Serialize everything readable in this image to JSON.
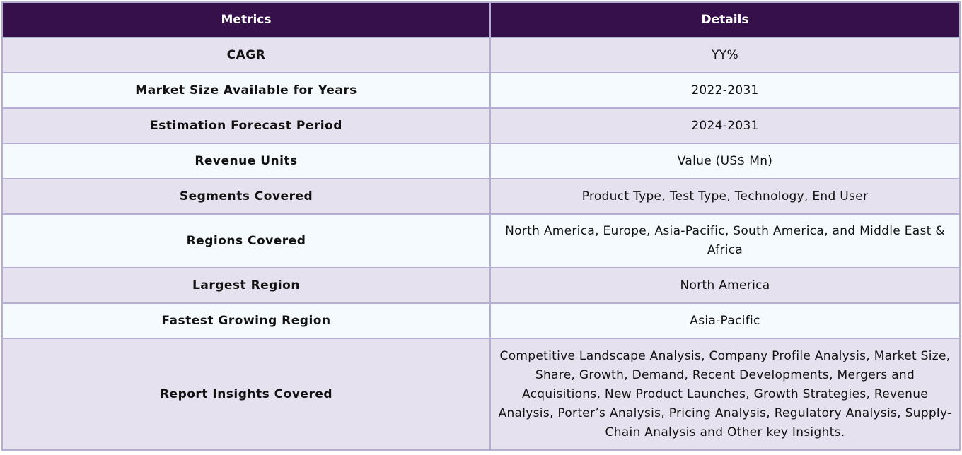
{
  "table": {
    "headers": [
      "Metrics",
      "Details"
    ],
    "rows": [
      {
        "metric": "CAGR",
        "details": "YY%"
      },
      {
        "metric": "Market Size Available for Years",
        "details": "2022-2031"
      },
      {
        "metric": "Estimation Forecast Period",
        "details": "2024-2031"
      },
      {
        "metric": "Revenue Units",
        "details": "Value (US$ Mn)"
      },
      {
        "metric": "Segments Covered",
        "details": "Product Type, Test Type, Technology, End User"
      },
      {
        "metric": "Regions Covered",
        "details": "North America, Europe, Asia-Pacific, South America, and Middle East & Africa"
      },
      {
        "metric": "Largest Region",
        "details": "North America"
      },
      {
        "metric": "Fastest Growing Region",
        "details": "Asia-Pacific"
      },
      {
        "metric": "Report Insights Covered",
        "details": "Competitive Landscape Analysis, Company Profile Analysis, Market Size, Share, Growth, Demand, Recent Developments, Mergers and Acquisitions, New Product Launches, Growth Strategies, Revenue Analysis, Porter’s Analysis, Pricing Analysis, Regulatory Analysis, Supply-Chain Analysis and Other key Insights."
      }
    ]
  },
  "colors": {
    "header_bg": "#35104a",
    "row_odd_bg": "#e5e1ee",
    "row_even_bg": "#f4fafd",
    "border": "#b5aed3"
  }
}
